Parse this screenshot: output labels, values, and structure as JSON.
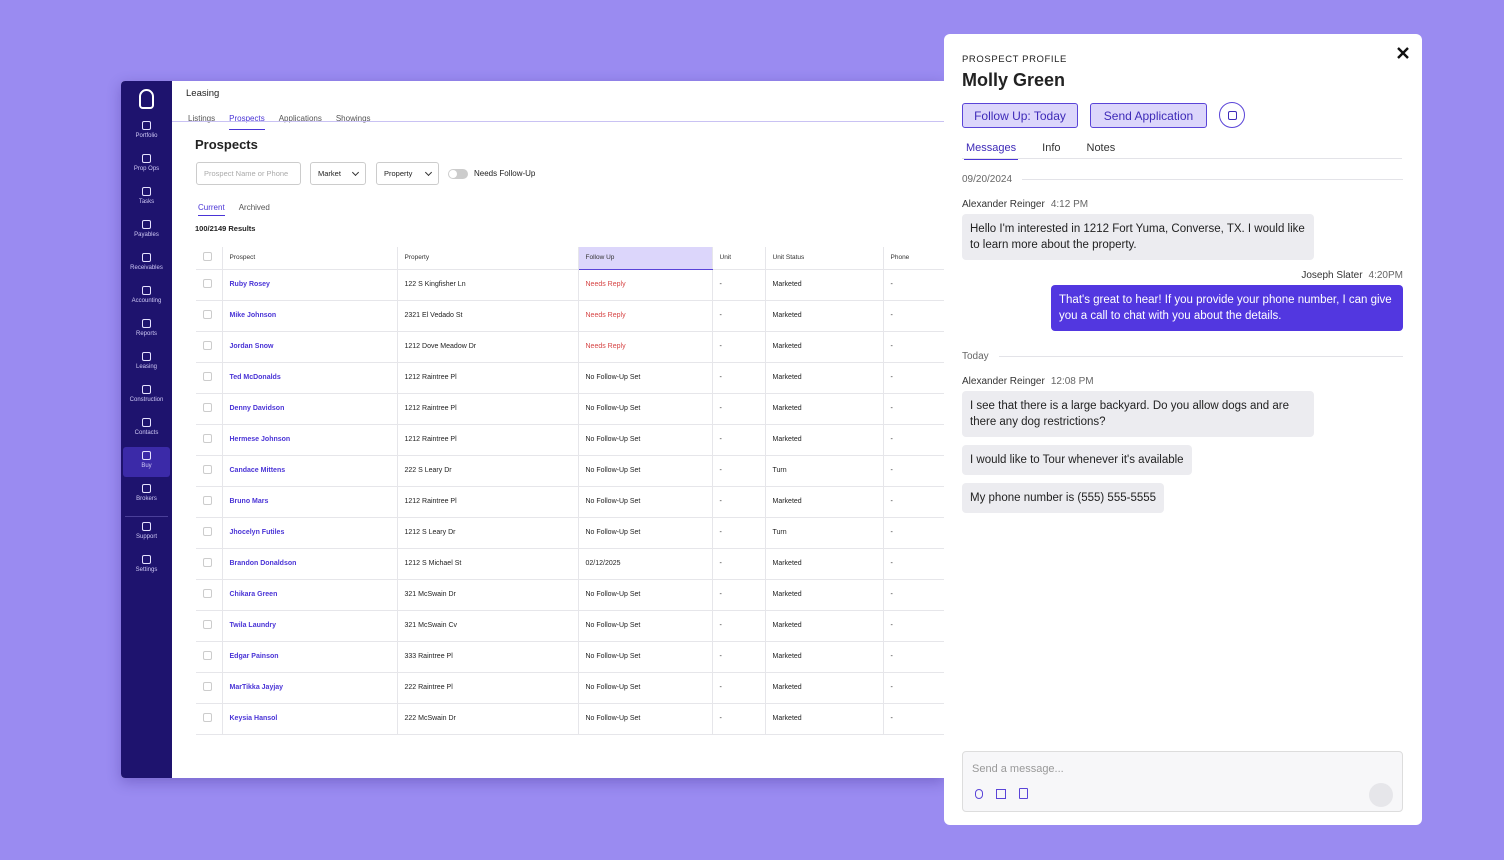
{
  "app": {
    "section": "Leasing",
    "tabs": [
      "Listings",
      "Prospects",
      "Applications",
      "Showings"
    ],
    "sidebar": [
      "Portfolio",
      "Prop Ops",
      "Tasks",
      "Payables",
      "Receivables",
      "Accounting",
      "Reports",
      "Leasing",
      "Construction",
      "Contacts",
      "Buy",
      "Brokers",
      "Support",
      "Settings"
    ],
    "page_title": "Prospects",
    "search_placeholder": "Prospect Name or Phone",
    "filters": [
      "Market",
      "Property"
    ],
    "toggle": "Needs Follow-Up",
    "subtabs": [
      "Current",
      "Archived"
    ],
    "results": "100/2149 Results",
    "table": {
      "columns": [
        "Prospect",
        "Property",
        "Follow Up",
        "Unit",
        "Unit Status",
        "Phone"
      ],
      "rows": [
        {
          "prospect": "Ruby Rosey",
          "property": "122 S Kingfisher Ln",
          "follow_up": "Needs Reply",
          "follow_up_color": "#d64545",
          "unit": "-",
          "unit_status": "Marketed",
          "phone": "-"
        },
        {
          "prospect": "Mike Johnson",
          "property": "2321 El Vedado St",
          "follow_up": "Needs Reply",
          "follow_up_color": "#d64545",
          "unit": "-",
          "unit_status": "Marketed",
          "phone": "-"
        },
        {
          "prospect": "Jordan Snow",
          "property": "1212 Dove Meadow Dr",
          "follow_up": "Needs Reply",
          "follow_up_color": "#d64545",
          "unit": "-",
          "unit_status": "Marketed",
          "phone": "-"
        },
        {
          "prospect": "Ted McDonalds",
          "property": "1212 Raintree Pl",
          "follow_up": "No Follow-Up Set",
          "unit": "-",
          "unit_status": "Marketed",
          "phone": "-"
        },
        {
          "prospect": "Denny Davidson",
          "property": "1212 Raintree Pl",
          "follow_up": "No Follow-Up Set",
          "unit": "-",
          "unit_status": "Marketed",
          "phone": "-"
        },
        {
          "prospect": "Hermese Johnson",
          "property": "1212 Raintree Pl",
          "follow_up": "No Follow-Up Set",
          "unit": "-",
          "unit_status": "Marketed",
          "phone": "-"
        },
        {
          "prospect": "Candace Mittens",
          "property": "222 S Leary Dr",
          "follow_up": "No Follow-Up Set",
          "unit": "-",
          "unit_status": "Turn",
          "phone": "-"
        },
        {
          "prospect": "Bruno Mars",
          "property": "1212 Raintree Pl",
          "follow_up": "No Follow-Up Set",
          "unit": "-",
          "unit_status": "Marketed",
          "phone": "-"
        },
        {
          "prospect": "Jhocelyn Futiles",
          "property": "1212 S Leary Dr",
          "follow_up": "No Follow-Up Set",
          "unit": "-",
          "unit_status": "Turn",
          "phone": "-"
        },
        {
          "prospect": "Brandon Donaldson",
          "property": "1212 S Michael St",
          "follow_up": "02/12/2025",
          "unit": "-",
          "unit_status": "Marketed",
          "phone": "-"
        },
        {
          "prospect": "Chikara Green",
          "property": "321 McSwain Dr",
          "follow_up": "No Follow-Up Set",
          "unit": "-",
          "unit_status": "Marketed",
          "phone": "-"
        },
        {
          "prospect": "Twila Laundry",
          "property": "321 McSwain Cv",
          "follow_up": "No Follow-Up Set",
          "unit": "-",
          "unit_status": "Marketed",
          "phone": "-"
        },
        {
          "prospect": "Edgar Painson",
          "property": "333 Raintree Pl",
          "follow_up": "No Follow-Up Set",
          "unit": "-",
          "unit_status": "Marketed",
          "phone": "-"
        },
        {
          "prospect": "MarTikka Jayjay",
          "property": "222 Raintree Pl",
          "follow_up": "No Follow-Up Set",
          "unit": "-",
          "unit_status": "Marketed",
          "phone": "-"
        },
        {
          "prospect": "Keysia Hansol",
          "property": "222 McSwain Dr",
          "follow_up": "No Follow-Up Set",
          "unit": "-",
          "unit_status": "Marketed",
          "phone": "-"
        }
      ]
    }
  },
  "profile": {
    "label": "PROSPECT PROFILE",
    "name": "Molly Green",
    "buttons": [
      "Follow Up: Today",
      "Send Application"
    ],
    "tabs": [
      "Messages",
      "Info",
      "Notes"
    ],
    "conversation": [
      {
        "date": "09/20/2024",
        "messages": [
          {
            "sender": "Alexander Reinger",
            "time": "4:12 PM",
            "side": "left",
            "bubbles": [
              "Hello I'm interested in  1212 Fort Yuma, Converse, TX. I would like to learn more about the property."
            ]
          },
          {
            "sender": "Joseph Slater",
            "time": "4:20PM",
            "side": "right",
            "bubbles": [
              "That's great to hear! If you provide your phone number, I can give you a call to chat with you about the details."
            ]
          }
        ]
      },
      {
        "date": "Today",
        "messages": [
          {
            "sender": "Alexander Reinger",
            "time": "12:08 PM",
            "side": "left",
            "bubbles": [
              "I see that there is a large backyard. Do you allow dogs and are there any dog restrictions?",
              "I would like to Tour whenever it's available",
              "My phone number is (555) 555-5555"
            ]
          }
        ]
      }
    ],
    "input_placeholder": "Send a message..."
  }
}
